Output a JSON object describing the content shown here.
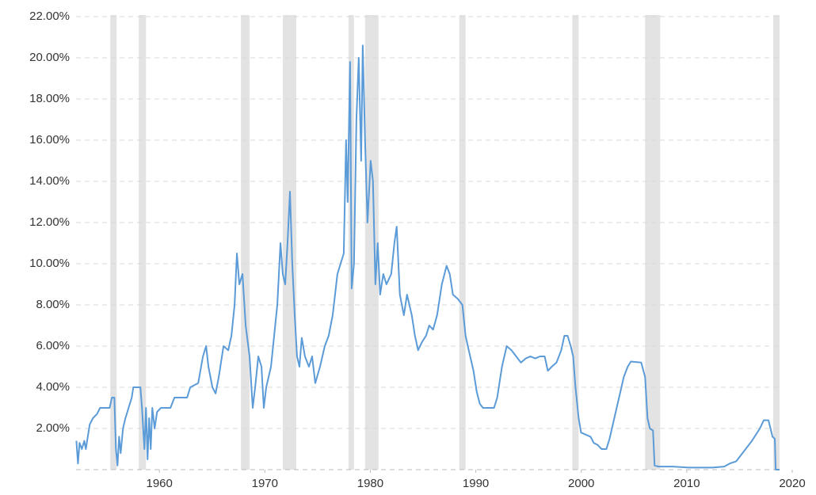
{
  "chart_data": {
    "type": "line",
    "color": "#5b9bd8",
    "recession_color": "#e3e3e3",
    "grid": true,
    "xlim": [
      1952.1,
      2020
    ],
    "xticks": [
      1960,
      1970,
      1980,
      1990,
      2000,
      2010,
      2020
    ],
    "ylim": [
      0,
      22
    ],
    "yticks": [
      {
        "value": 2,
        "label": "2.00%"
      },
      {
        "value": 4,
        "label": "4.00%"
      },
      {
        "value": 6,
        "label": "6.00%"
      },
      {
        "value": 8,
        "label": "8.00%"
      },
      {
        "value": 10,
        "label": "10.00%"
      },
      {
        "value": 12,
        "label": "12.00%"
      },
      {
        "value": 14,
        "label": "14.00%"
      },
      {
        "value": 16,
        "label": "16.00%"
      },
      {
        "value": 18,
        "label": "18.00%"
      },
      {
        "value": 20,
        "label": "20.00%"
      },
      {
        "value": 22,
        "label": "22.00%"
      }
    ],
    "recessions": [
      [
        1955.35,
        1955.95
      ],
      [
        1958.05,
        1958.73
      ],
      [
        1967.73,
        1968.55
      ],
      [
        1971.7,
        1972.98
      ],
      [
        1977.93,
        1978.45
      ],
      [
        1979.5,
        1980.78
      ],
      [
        1988.43,
        1989.03
      ],
      [
        1999.15,
        1999.75
      ],
      [
        2006.05,
        2007.48
      ],
      [
        2018.2,
        2018.8
      ]
    ],
    "x": [
      1952.13,
      1952.28,
      1952.43,
      1952.65,
      1952.88,
      1953.03,
      1953.18,
      1953.4,
      1953.7,
      1954.08,
      1954.38,
      1955.28,
      1955.5,
      1955.73,
      1955.88,
      1956.03,
      1956.18,
      1956.33,
      1956.55,
      1956.78,
      1957.08,
      1957.38,
      1957.53,
      1958.2,
      1958.35,
      1958.58,
      1958.73,
      1958.88,
      1959.03,
      1959.18,
      1959.33,
      1959.55,
      1959.78,
      1960.15,
      1961.05,
      1961.43,
      1962.63,
      1962.93,
      1963.68,
      1964.13,
      1964.43,
      1964.65,
      1965.03,
      1965.33,
      1965.63,
      1966.08,
      1966.53,
      1966.83,
      1967.13,
      1967.35,
      1967.58,
      1967.88,
      1968.18,
      1968.55,
      1968.85,
      1969.08,
      1969.38,
      1969.68,
      1969.9,
      1970.13,
      1970.58,
      1970.88,
      1971.18,
      1971.48,
      1971.7,
      1971.93,
      1972.15,
      1972.38,
      1972.6,
      1972.83,
      1973.05,
      1973.28,
      1973.5,
      1973.8,
      1974.18,
      1974.48,
      1974.78,
      1975.23,
      1975.68,
      1976.05,
      1976.43,
      1976.88,
      1977.18,
      1977.48,
      1977.7,
      1977.85,
      1978.08,
      1978.23,
      1978.45,
      1978.68,
      1978.9,
      1979.13,
      1979.28,
      1979.5,
      1979.73,
      1980.03,
      1980.25,
      1980.48,
      1980.7,
      1980.93,
      1981.23,
      1981.53,
      1981.98,
      1982.28,
      1982.5,
      1982.8,
      1983.18,
      1983.48,
      1983.93,
      1984.23,
      1984.53,
      1984.9,
      1985.28,
      1985.58,
      1985.95,
      1986.33,
      1986.78,
      1987.23,
      1987.53,
      1987.83,
      1988.28,
      1988.73,
      1989.03,
      1989.33,
      1989.78,
      1990.08,
      1990.38,
      1990.68,
      1991.13,
      1991.73,
      1992.03,
      1992.48,
      1992.93,
      1993.38,
      1993.83,
      1994.28,
      1994.73,
      1995.18,
      1995.63,
      1996.08,
      1996.53,
      1996.83,
      1997.2,
      1997.65,
      1998.1,
      1998.4,
      1998.7,
      1999.0,
      1999.23,
      1999.45,
      1999.75,
      1999.98,
      2000.43,
      2000.88,
      2001.18,
      2001.55,
      2001.93,
      2002.38,
      2002.68,
      2003.13,
      2003.58,
      2004.03,
      2004.4,
      2004.7,
      2005.68,
      2006.05,
      2006.28,
      2006.5,
      2006.8,
      2006.95,
      2007.33,
      2008.68,
      2010.18,
      2012.43,
      2013.55,
      2014.08,
      2014.68,
      2015.43,
      2016.18,
      2016.93,
      2017.3,
      2017.75,
      2018.13,
      2018.35,
      2018.43,
      2018.8
    ],
    "values": [
      1.4,
      0.3,
      1.3,
      1.0,
      1.4,
      1.0,
      1.5,
      2.2,
      2.5,
      2.7,
      3.0,
      3.0,
      3.5,
      3.5,
      1.0,
      0.2,
      1.6,
      0.8,
      2.0,
      2.5,
      3.0,
      3.5,
      4.0,
      4.0,
      3.0,
      1.0,
      3.0,
      0.5,
      2.5,
      1.0,
      3.0,
      2.0,
      2.8,
      3.0,
      3.0,
      3.5,
      3.5,
      4.0,
      4.2,
      5.5,
      6.0,
      5.0,
      4.0,
      3.7,
      4.5,
      6.0,
      5.8,
      6.5,
      8.0,
      10.5,
      9.0,
      9.5,
      7.0,
      5.5,
      3.0,
      4.0,
      5.5,
      5.0,
      3.0,
      4.0,
      5.0,
      6.5,
      8.0,
      11.0,
      9.5,
      9.0,
      11.0,
      13.5,
      10.0,
      7.5,
      5.5,
      5.0,
      6.4,
      5.5,
      5.0,
      5.5,
      4.2,
      5.0,
      6.0,
      6.5,
      7.5,
      9.5,
      10.0,
      10.5,
      16.0,
      13.0,
      19.8,
      8.8,
      10.0,
      17.0,
      20.0,
      15.0,
      20.6,
      16.0,
      12.0,
      15.0,
      14.0,
      9.0,
      11.0,
      8.5,
      9.5,
      9.0,
      9.5,
      11.0,
      11.8,
      8.5,
      7.5,
      8.5,
      7.5,
      6.5,
      5.8,
      6.2,
      6.5,
      7.0,
      6.8,
      7.5,
      9.0,
      9.9,
      9.5,
      8.5,
      8.3,
      8.0,
      6.5,
      5.8,
      4.8,
      3.8,
      3.2,
      3.0,
      3.0,
      3.0,
      3.5,
      5.0,
      6.0,
      5.8,
      5.5,
      5.2,
      5.4,
      5.5,
      5.4,
      5.5,
      5.5,
      4.8,
      5.0,
      5.2,
      5.8,
      6.5,
      6.5,
      6.0,
      5.5,
      4.0,
      2.5,
      1.8,
      1.7,
      1.6,
      1.3,
      1.2,
      1.0,
      1.0,
      1.5,
      2.5,
      3.5,
      4.5,
      5.0,
      5.25,
      5.2,
      4.5,
      2.5,
      2.0,
      1.9,
      0.2,
      0.15,
      0.15,
      0.1,
      0.1,
      0.15,
      0.3,
      0.4,
      0.9,
      1.4,
      2.0,
      2.4,
      2.4,
      1.6,
      1.5,
      0.0,
      0.0
    ]
  }
}
